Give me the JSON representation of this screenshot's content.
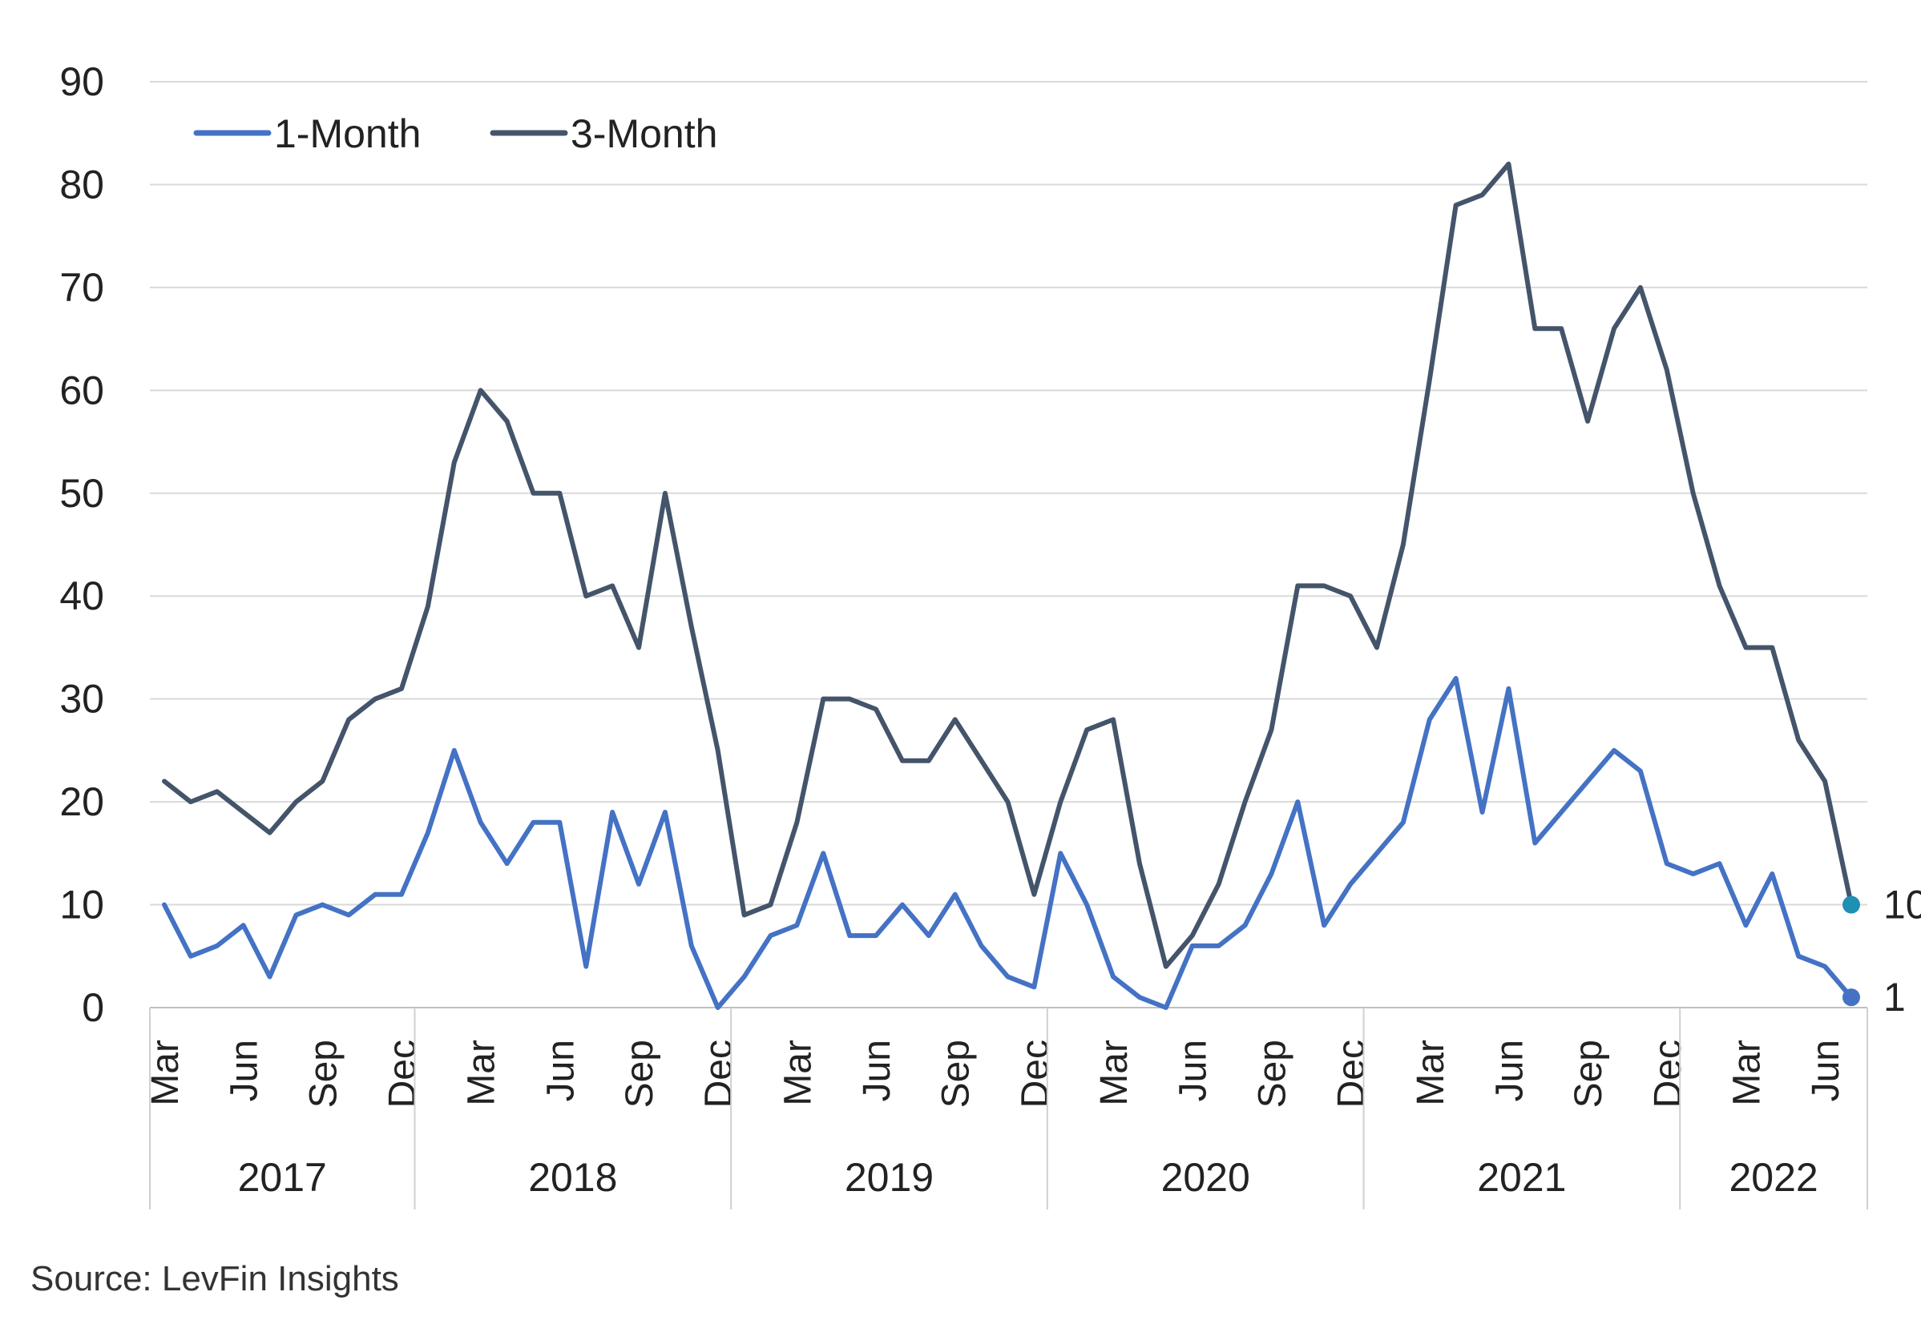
{
  "chart_data": {
    "type": "line",
    "title": "",
    "xlabel": "",
    "ylabel": "",
    "ylim": [
      0,
      90
    ],
    "yticks": [
      0,
      10,
      20,
      30,
      40,
      50,
      60,
      70,
      80,
      90
    ],
    "grid": true,
    "legend_position": "top-left",
    "x": [
      "2017-03",
      "2017-04",
      "2017-05",
      "2017-06",
      "2017-07",
      "2017-08",
      "2017-09",
      "2017-10",
      "2017-11",
      "2017-12",
      "2018-01",
      "2018-02",
      "2018-03",
      "2018-04",
      "2018-05",
      "2018-06",
      "2018-07",
      "2018-08",
      "2018-09",
      "2018-10",
      "2018-11",
      "2018-12",
      "2019-01",
      "2019-02",
      "2019-03",
      "2019-04",
      "2019-05",
      "2019-06",
      "2019-07",
      "2019-08",
      "2019-09",
      "2019-10",
      "2019-11",
      "2019-12",
      "2020-01",
      "2020-02",
      "2020-03",
      "2020-04",
      "2020-05",
      "2020-06",
      "2020-07",
      "2020-08",
      "2020-09",
      "2020-10",
      "2020-11",
      "2020-12",
      "2021-01",
      "2021-02",
      "2021-03",
      "2021-04",
      "2021-05",
      "2021-06",
      "2021-07",
      "2021-08",
      "2021-09",
      "2021-10",
      "2021-11",
      "2021-12",
      "2022-01",
      "2022-02",
      "2022-03",
      "2022-04",
      "2022-05",
      "2022-06",
      "2022-07"
    ],
    "month_ticks": [
      {
        "label": "Mar",
        "x": "2017-03"
      },
      {
        "label": "Jun",
        "x": "2017-06"
      },
      {
        "label": "Sep",
        "x": "2017-09"
      },
      {
        "label": "Dec",
        "x": "2017-12"
      },
      {
        "label": "Mar",
        "x": "2018-03"
      },
      {
        "label": "Jun",
        "x": "2018-06"
      },
      {
        "label": "Sep",
        "x": "2018-09"
      },
      {
        "label": "Dec",
        "x": "2018-12"
      },
      {
        "label": "Mar",
        "x": "2019-03"
      },
      {
        "label": "Jun",
        "x": "2019-06"
      },
      {
        "label": "Sep",
        "x": "2019-09"
      },
      {
        "label": "Dec",
        "x": "2019-12"
      },
      {
        "label": "Mar",
        "x": "2020-03"
      },
      {
        "label": "Jun",
        "x": "2020-06"
      },
      {
        "label": "Sep",
        "x": "2020-09"
      },
      {
        "label": "Dec",
        "x": "2020-12"
      },
      {
        "label": "Mar",
        "x": "2021-03"
      },
      {
        "label": "Jun",
        "x": "2021-06"
      },
      {
        "label": "Sep",
        "x": "2021-09"
      },
      {
        "label": "Dec",
        "x": "2021-12"
      },
      {
        "label": "Mar",
        "x": "2022-03"
      },
      {
        "label": "Jun",
        "x": "2022-06"
      }
    ],
    "years": [
      {
        "label": "2017",
        "start": "2017-03",
        "end": "2017-12"
      },
      {
        "label": "2018",
        "start": "2018-01",
        "end": "2018-12"
      },
      {
        "label": "2019",
        "start": "2019-01",
        "end": "2019-12"
      },
      {
        "label": "2020",
        "start": "2020-01",
        "end": "2020-12"
      },
      {
        "label": "2021",
        "start": "2021-01",
        "end": "2021-12"
      },
      {
        "label": "2022",
        "start": "2022-01",
        "end": "2022-07"
      }
    ],
    "series": [
      {
        "name": "1-Month",
        "color": "#4472C4",
        "values": [
          10,
          5,
          6,
          8,
          3,
          9,
          10,
          9,
          11,
          11,
          17,
          25,
          18,
          14,
          18,
          18,
          4,
          19,
          12,
          19,
          6,
          0,
          3,
          7,
          8,
          15,
          7,
          7,
          10,
          7,
          11,
          6,
          3,
          2,
          15,
          10,
          3,
          1,
          0,
          6,
          6,
          8,
          13,
          20,
          8,
          12,
          15,
          18,
          28,
          32,
          19,
          31,
          16,
          19,
          22,
          25,
          23,
          14,
          13,
          14,
          8,
          13,
          5,
          4,
          1
        ],
        "end_label": "1",
        "end_marker_color": "#4472C4"
      },
      {
        "name": "3-Month",
        "color": "#44546A",
        "values": [
          22,
          20,
          21,
          19,
          17,
          20,
          22,
          28,
          30,
          31,
          39,
          53,
          60,
          57,
          50,
          50,
          40,
          41,
          35,
          50,
          37,
          25,
          9,
          10,
          18,
          30,
          30,
          29,
          24,
          24,
          28,
          24,
          20,
          11,
          20,
          27,
          28,
          14,
          4,
          7,
          12,
          20,
          27,
          41,
          41,
          40,
          35,
          45,
          61,
          78,
          79,
          82,
          66,
          66,
          57,
          66,
          70,
          62,
          50,
          41,
          35,
          35,
          26,
          22,
          10
        ],
        "end_label": "10",
        "end_marker_color": "#1F8FB3"
      }
    ]
  },
  "source": "Source: LevFin Insights"
}
